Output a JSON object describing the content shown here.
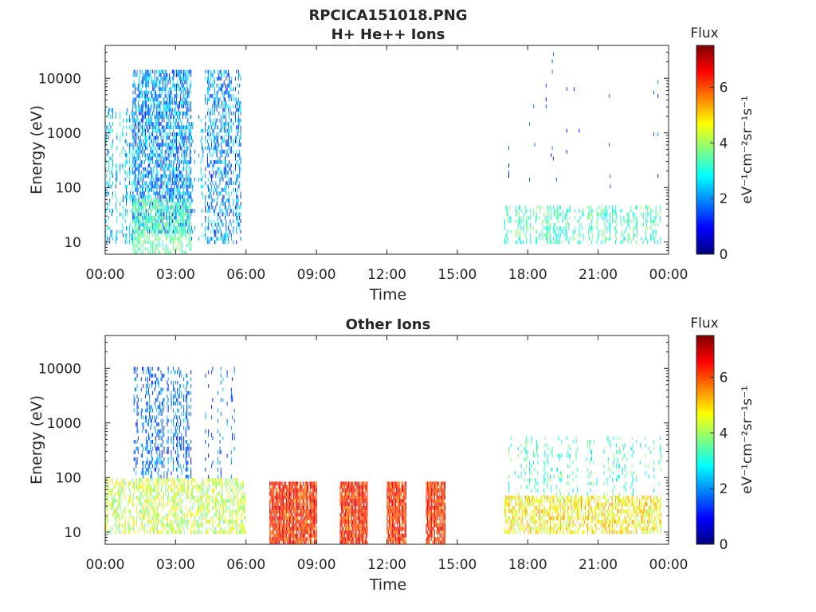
{
  "figure": {
    "title_line1": "RPCICA151018.PNG",
    "colorbar_label": "Flux",
    "colorbar_units": "eV⁻¹cm⁻²sr⁻¹s⁻¹"
  },
  "chart_data": [
    {
      "type": "heatmap",
      "title": "H+ He++ Ions",
      "xlabel": "Time",
      "ylabel": "Energy (eV)",
      "x_ticks": [
        "00:00",
        "03:00",
        "06:00",
        "09:00",
        "12:00",
        "15:00",
        "18:00",
        "21:00",
        "00:00"
      ],
      "x_range_hours": [
        0,
        24
      ],
      "y_scale": "log",
      "y_ticks": [
        10,
        100,
        1000,
        10000
      ],
      "y_range_eV": [
        6,
        40000
      ],
      "colorbar": {
        "label": "Flux",
        "range": [
          0,
          7.5
        ],
        "ticks": [
          0,
          2,
          4,
          6
        ],
        "colormap": "jet"
      },
      "grid": false,
      "regions": [
        {
          "start": "00:00",
          "end": "01:10",
          "energy_eV": [
            10,
            3000
          ],
          "flux": [
            1.5,
            3.5
          ],
          "density": 0.35
        },
        {
          "start": "01:10",
          "end": "03:40",
          "energy_eV": [
            15,
            15000
          ],
          "flux": [
            1,
            3
          ],
          "density": 0.6
        },
        {
          "start": "01:10",
          "end": "03:40",
          "energy_eV": [
            6,
            60
          ],
          "flux": [
            3,
            4
          ],
          "density": 0.5
        },
        {
          "start": "03:40",
          "end": "04:10",
          "energy_eV": [
            10,
            2000
          ],
          "flux": [
            1.5,
            3
          ],
          "density": 0.2
        },
        {
          "start": "04:10",
          "end": "05:50",
          "energy_eV": [
            10,
            15000
          ],
          "flux": [
            1,
            3
          ],
          "density": 0.45
        },
        {
          "start": "17:00",
          "end": "23:40",
          "energy_eV": [
            10,
            50
          ],
          "flux": [
            2.5,
            4
          ],
          "density": 0.4
        },
        {
          "start": "17:00",
          "end": "23:40",
          "energy_eV": [
            100,
            30000
          ],
          "flux": [
            1,
            2
          ],
          "density": 0.04
        }
      ]
    },
    {
      "type": "heatmap",
      "title": "Other Ions",
      "xlabel": "Time",
      "ylabel": "Energy (eV)",
      "x_ticks": [
        "00:00",
        "03:00",
        "06:00",
        "09:00",
        "12:00",
        "15:00",
        "18:00",
        "21:00",
        "00:00"
      ],
      "x_range_hours": [
        0,
        24
      ],
      "y_scale": "log",
      "y_ticks": [
        10,
        100,
        1000,
        10000
      ],
      "y_range_eV": [
        6,
        40000
      ],
      "colorbar": {
        "label": "Flux",
        "range": [
          0,
          7.5
        ],
        "ticks": [
          0,
          2,
          4,
          6
        ],
        "colormap": "jet"
      },
      "grid": false,
      "regions": [
        {
          "start": "00:00",
          "end": "06:00",
          "energy_eV": [
            10,
            100
          ],
          "flux": [
            3.5,
            5
          ],
          "density": 0.5
        },
        {
          "start": "01:10",
          "end": "03:40",
          "energy_eV": [
            100,
            10000
          ],
          "flux": [
            1,
            2.5
          ],
          "density": 0.35
        },
        {
          "start": "04:10",
          "end": "05:30",
          "energy_eV": [
            100,
            10000
          ],
          "flux": [
            1,
            2.5
          ],
          "density": 0.2
        },
        {
          "start": "07:00",
          "end": "09:00",
          "energy_eV": [
            6,
            80
          ],
          "flux": [
            5.5,
            7
          ],
          "density": 0.9
        },
        {
          "start": "10:00",
          "end": "11:10",
          "energy_eV": [
            6,
            80
          ],
          "flux": [
            5.5,
            7
          ],
          "density": 0.9
        },
        {
          "start": "12:00",
          "end": "12:50",
          "energy_eV": [
            6,
            80
          ],
          "flux": [
            5.5,
            7
          ],
          "density": 0.9
        },
        {
          "start": "13:40",
          "end": "14:30",
          "energy_eV": [
            6,
            80
          ],
          "flux": [
            5.5,
            7
          ],
          "density": 0.9
        },
        {
          "start": "17:00",
          "end": "23:40",
          "energy_eV": [
            10,
            45
          ],
          "flux": [
            4,
            5.5
          ],
          "density": 0.55
        },
        {
          "start": "17:00",
          "end": "23:40",
          "energy_eV": [
            45,
            600
          ],
          "flux": [
            2.5,
            4
          ],
          "density": 0.25
        }
      ]
    }
  ]
}
